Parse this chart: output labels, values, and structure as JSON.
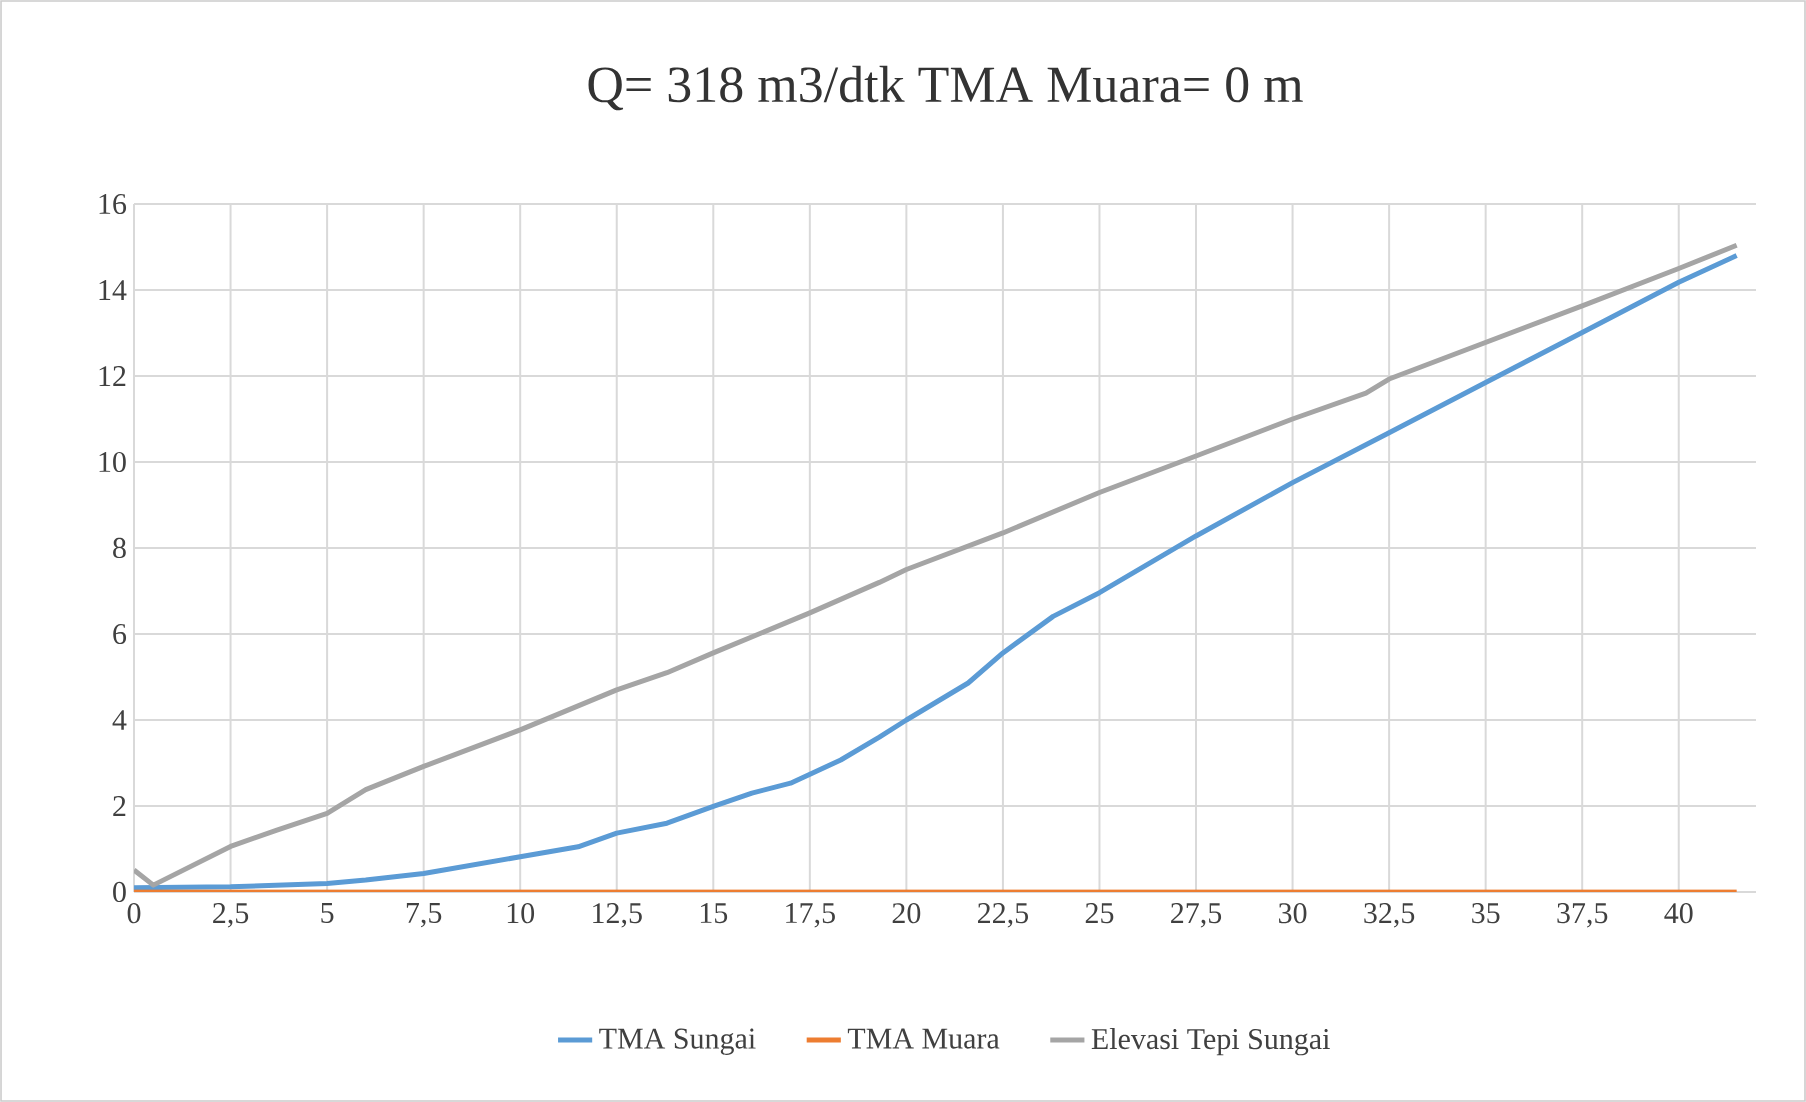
{
  "chart_data": {
    "type": "line",
    "title": "Q= 318 m3/dtk TMA Muara= 0 m",
    "xlim": [
      0,
      42
    ],
    "ylim": [
      0,
      16
    ],
    "xticks": [
      0,
      {
        "value": 2.5,
        "label": "2,5"
      },
      5,
      {
        "value": 7.5,
        "label": "7,5"
      },
      10,
      {
        "value": 12.5,
        "label": "12,5"
      },
      15,
      {
        "value": 17.5,
        "label": "17,5"
      },
      20,
      {
        "value": 22.5,
        "label": "22,5"
      },
      25,
      {
        "value": 27.5,
        "label": "27,5"
      },
      30,
      {
        "value": 32.5,
        "label": "32,5"
      },
      35,
      {
        "value": 37.5,
        "label": "37,5"
      },
      40
    ],
    "yticks": [
      0,
      2,
      4,
      6,
      8,
      10,
      12,
      14,
      16
    ],
    "grid": true,
    "legend": "bottom",
    "marker": "none",
    "line_style": "solid",
    "series": [
      {
        "name": "TMA Sungai",
        "color": "#5b9bd5",
        "x": [
          0,
          2.5,
          5,
          6,
          7.5,
          10,
          11.5,
          12.5,
          13.8,
          15,
          16,
          17,
          18.3,
          19.3,
          20,
          21.6,
          22.5,
          23.8,
          25,
          27.5,
          30,
          32.5,
          35,
          37.5,
          40,
          41.5
        ],
        "values": [
          0.1,
          0.12,
          0.2,
          0.28,
          0.43,
          0.82,
          1.05,
          1.37,
          1.6,
          1.99,
          2.3,
          2.53,
          3.07,
          3.6,
          4.0,
          4.86,
          5.56,
          6.41,
          6.96,
          8.28,
          9.52,
          10.68,
          11.85,
          13.01,
          14.18,
          14.8
        ]
      },
      {
        "name": "TMA Muara",
        "color": "#ed7d31",
        "x": [
          0,
          41.5
        ],
        "values": [
          0,
          0
        ]
      },
      {
        "name": "Elevasi Tepi Sungai",
        "color": "#a5a5a5",
        "x": [
          0,
          0.5,
          2.5,
          3.7,
          5,
          6,
          7.5,
          10,
          12.5,
          13.8,
          15,
          17.5,
          19.3,
          20,
          22.5,
          25,
          27.5,
          30,
          31.9,
          32.5,
          35,
          37.5,
          40,
          41.5
        ],
        "values": [
          0.51,
          0.16,
          1.06,
          1.44,
          1.83,
          2.38,
          2.92,
          3.77,
          4.7,
          5.1,
          5.56,
          6.49,
          7.2,
          7.5,
          8.35,
          9.29,
          10.14,
          11.0,
          11.6,
          11.93,
          12.78,
          13.63,
          14.5,
          15.04
        ]
      }
    ]
  }
}
